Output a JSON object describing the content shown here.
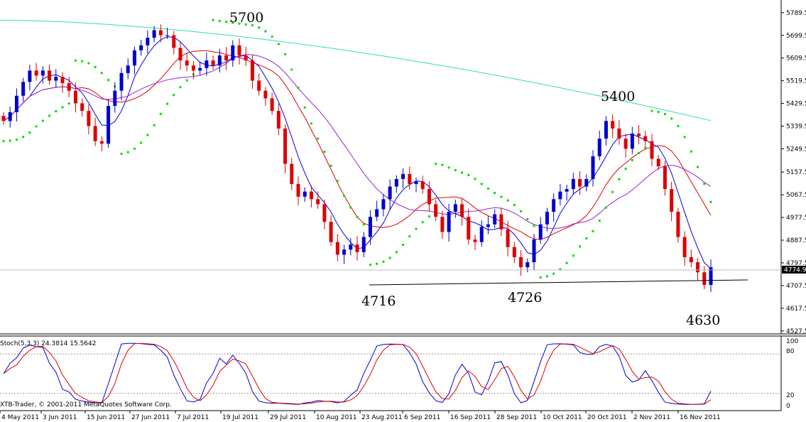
{
  "chart_data": {
    "type": "candlestick",
    "ylim": [
      4527,
      5789
    ],
    "price_ticks": [
      "5789.5",
      "5699.5",
      "5609.5",
      "5519.5",
      "5429.5",
      "5339.5",
      "5249.5",
      "5157.5",
      "5067.5",
      "4977.5",
      "4887.5",
      "4797.5",
      "4707.5",
      "4617.5",
      "4527.5"
    ],
    "current_price_label": "4774.9",
    "date_labels": [
      "4 May 2011",
      "3 Jun 2011",
      "15 Jun 2011",
      "27 Jun 2011",
      "7 Jul 2011",
      "19 Jul 2011",
      "29 Jul 2011",
      "10 Aug 2011",
      "23 Aug 2011",
      "6 Sep 2011",
      "16 Sep 2011",
      "28 Sep 2011",
      "10 Oct 2011",
      "20 Oct 2011",
      "2 Nov 2011",
      "16 Nov 2011"
    ],
    "annotations": [
      {
        "text": "5700"
      },
      {
        "text": "5400"
      },
      {
        "text": "4716"
      },
      {
        "text": "4726"
      },
      {
        "text": "4630"
      }
    ],
    "support_line": {
      "from_price": 4714,
      "to_price": 4740
    },
    "candles_close": [
      5360,
      5395,
      5460,
      5515,
      5560,
      5540,
      5560,
      5520,
      5535,
      5510,
      5480,
      5430,
      5400,
      5340,
      5280,
      5270,
      5420,
      5480,
      5550,
      5580,
      5640,
      5660,
      5690,
      5720,
      5700,
      5700,
      5650,
      5600,
      5580,
      5560,
      5570,
      5600,
      5580,
      5620,
      5600,
      5660,
      5620,
      5600,
      5520,
      5480,
      5450,
      5400,
      5330,
      5190,
      5110,
      5060,
      5080,
      5050,
      5030,
      4960,
      4880,
      4830,
      4850,
      4870,
      4840,
      4900,
      4980,
      5010,
      5050,
      5100,
      5130,
      5150,
      5110,
      5120,
      5090,
      5030,
      4980,
      4920,
      5000,
      5030,
      4980,
      4890,
      4880,
      4940,
      4950,
      4990,
      4930,
      4860,
      4820,
      4780,
      4800,
      4890,
      4950,
      5000,
      5050,
      5080,
      5090,
      5130,
      5100,
      5130,
      5220,
      5290,
      5360,
      5330,
      5290,
      5250,
      5310,
      5300,
      5280,
      5210,
      5180,
      5090,
      5000,
      4900,
      4820,
      4800,
      4760,
      4710,
      4780
    ],
    "stoch_ticks": [
      "100",
      "80",
      "20",
      "0"
    ],
    "stoch_label": "Stoch(5,3,3) 24.3814 15.5642",
    "copyright": "XTB-Trader, © 2001-2011 MetaQuotes Software Corp.",
    "colors": {
      "bull": "#0000cc",
      "bear": "#dd0000",
      "ma_long": "#33ddaa",
      "ma_mid": "#dd0000",
      "ma_fast": "#0000dd",
      "ma_slow": "#9922cc",
      "sar": "#00dd00",
      "stoch_main": "#0000cc",
      "stoch_signal": "#dd0000"
    }
  }
}
